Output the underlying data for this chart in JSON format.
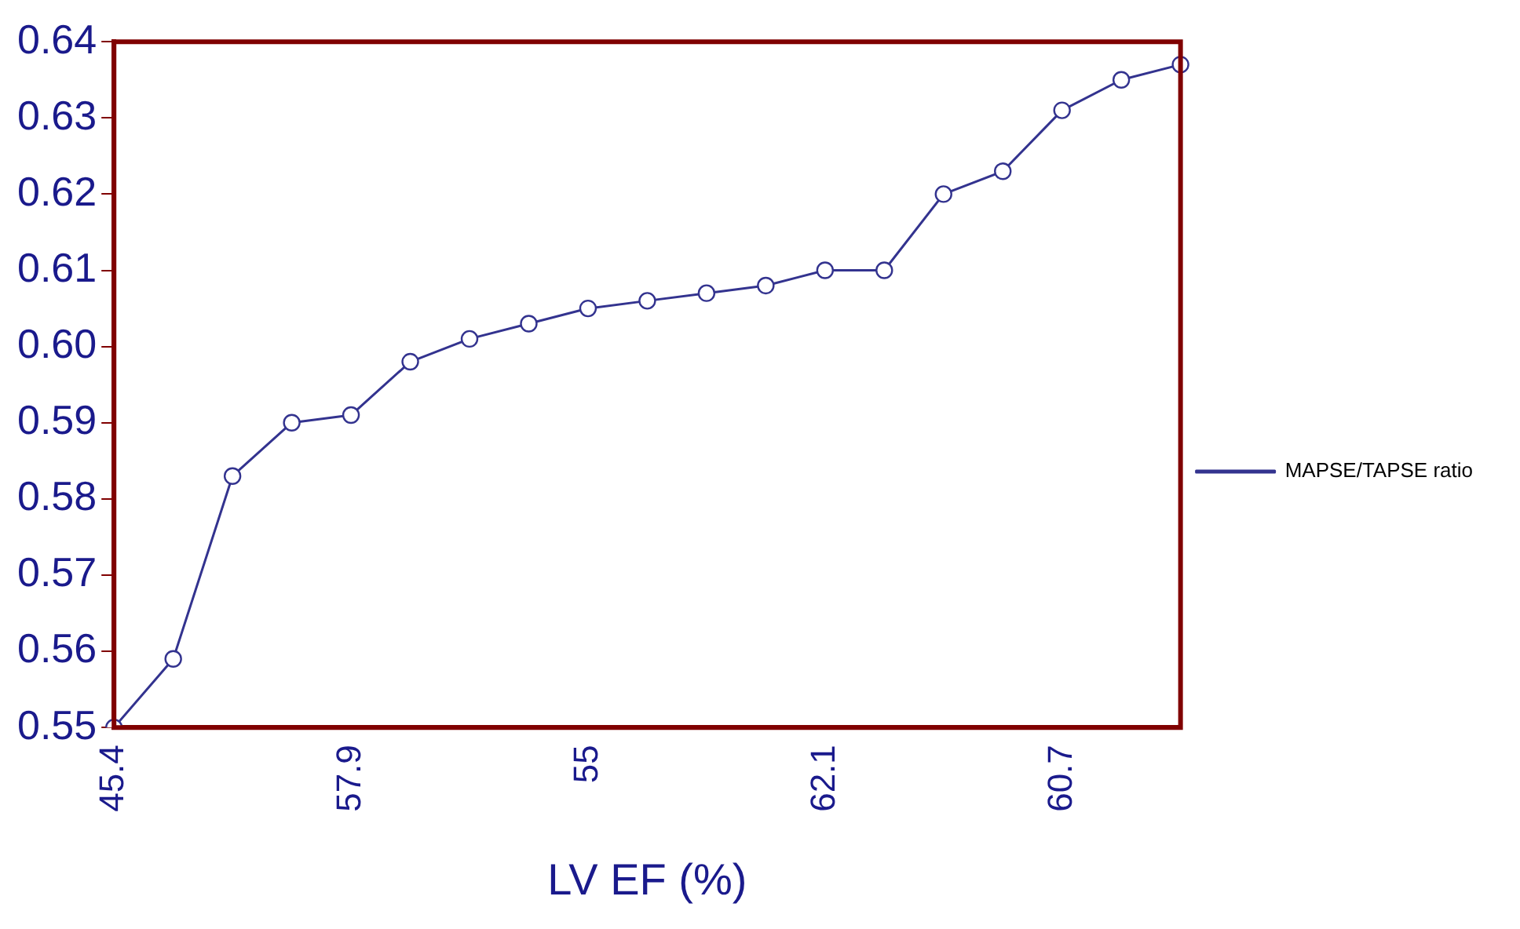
{
  "chart_data": {
    "type": "line",
    "xlabel": "LV EF (%)",
    "categories": [
      "45.4",
      null,
      null,
      null,
      "57.9",
      null,
      null,
      null,
      "55",
      null,
      null,
      null,
      "62.1",
      null,
      null,
      null,
      "60.7",
      null,
      null
    ],
    "series": [
      {
        "name": "MAPSE/TAPSE ratio",
        "color": "#33338f",
        "values": [
          0.55,
          0.559,
          0.583,
          0.59,
          0.591,
          0.598,
          0.601,
          0.603,
          0.605,
          0.606,
          0.607,
          0.608,
          0.61,
          0.61,
          0.62,
          0.623,
          0.631,
          0.635,
          0.637
        ]
      }
    ],
    "ylim": [
      0.55,
      0.64
    ],
    "yticks": [
      0.55,
      0.56,
      0.57,
      0.58,
      0.59,
      {
        "value": 0.6,
        "label": "0.60"
      },
      0.61,
      0.62,
      0.63,
      0.64
    ],
    "legend": "right",
    "marker": "circle",
    "line_style": "solid"
  }
}
